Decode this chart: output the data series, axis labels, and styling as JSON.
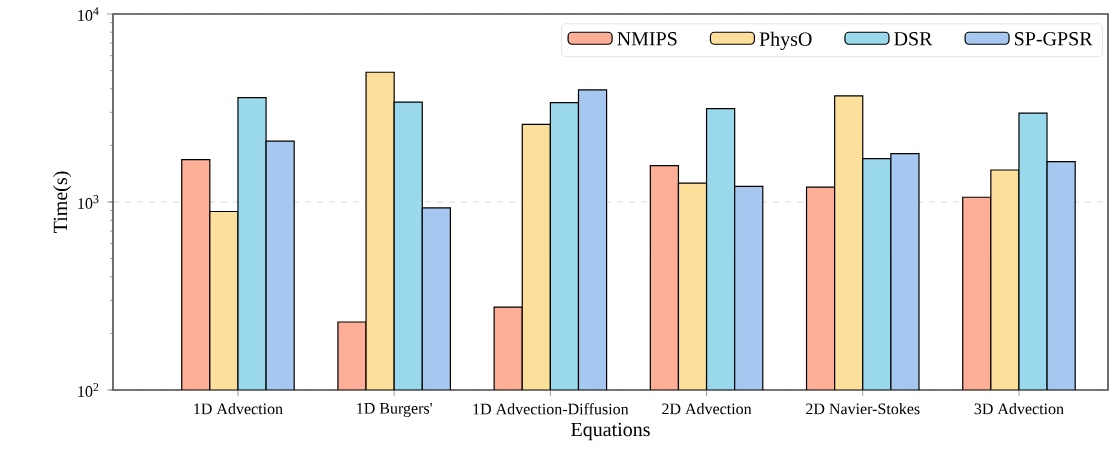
{
  "chart_data": {
    "type": "bar",
    "xlabel": "Equations",
    "ylabel": "Time(s)",
    "log": "y",
    "categories": [
      "1D Advection",
      "1D Burgers'",
      "1D Advection-Diffusion",
      "2D Advection",
      "2D Navier-Stokes",
      "3D Advection"
    ],
    "series": [
      {
        "name": "NMIPS",
        "color": "#fcae96",
        "values": [
          1680,
          230,
          276,
          1560,
          1200,
          1060
        ]
      },
      {
        "name": "PhysO",
        "color": "#fcdf9a",
        "values": [
          890,
          4900,
          2590,
          1260,
          3670,
          1480
        ]
      },
      {
        "name": "DSR",
        "color": "#9ad8eb",
        "values": [
          3590,
          3400,
          3380,
          3140,
          1700,
          2970
        ]
      },
      {
        "name": "SP-GPSR",
        "color": "#a6c8f0",
        "values": [
          2110,
          930,
          3950,
          1210,
          1810,
          1640
        ]
      }
    ],
    "ylim": [
      100,
      10000
    ],
    "yticks": [
      {
        "value": 100,
        "label": "10$^{2}$"
      },
      {
        "value": 1000,
        "label": "10$^{3}$"
      },
      {
        "value": 10000,
        "label": "10$^{4}$"
      }
    ],
    "grid": "y",
    "legend": "top right"
  }
}
